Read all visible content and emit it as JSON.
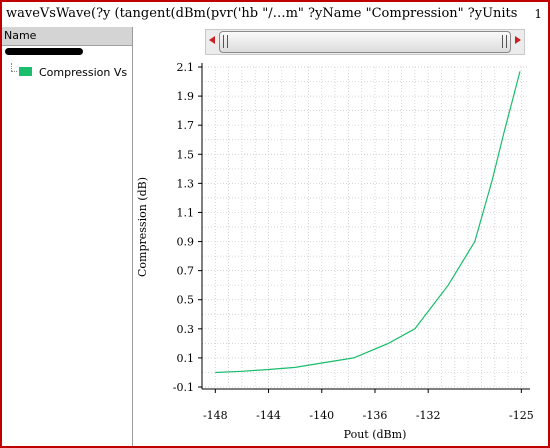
{
  "window": {
    "title": "waveVsWave(?y (tangent(dBm(pvr('hb \"/…m\" ?yName \"Compression\" ?yUnits",
    "subwindow_number": "1",
    "frame_color": "#c00000"
  },
  "sidebar": {
    "header": "Name",
    "items": [
      {
        "label": "Compression Vs",
        "color": "#19bd6b"
      }
    ]
  },
  "scrollbar": {
    "left_icon": "scroll-left-arrow-icon",
    "right_icon": "scroll-right-arrow-icon"
  },
  "chart_data": {
    "type": "line",
    "xlabel": "Pout (dBm)",
    "ylabel": "Compression (dB)",
    "xlim": [
      -149,
      -124.5
    ],
    "ylim": [
      -0.1,
      2.1
    ],
    "xticks": [
      -148,
      -144,
      -140,
      -136,
      -132,
      -125
    ],
    "xtick_labels": [
      "-148",
      "-144",
      "-140",
      "-136",
      "-132",
      "-125"
    ],
    "yticks": [
      -0.1,
      0.1,
      0.3,
      0.5,
      0.7,
      0.9,
      1.1,
      1.3,
      1.5,
      1.7,
      1.9,
      2.1
    ],
    "ytick_labels": [
      "-0.1",
      "0.1",
      "0.3",
      "0.5",
      "0.7",
      "0.9",
      "1.1",
      "1.3",
      "1.5",
      "1.7",
      "1.9",
      "2.1"
    ],
    "grid": true,
    "series": [
      {
        "name": "Compression Vs",
        "color": "#19bd6b",
        "x": [
          -148,
          -146,
          -144,
          -142,
          -140,
          -137.6,
          -135,
          -133,
          -130.5,
          -128.5,
          -127.2,
          -126.3,
          -125.1
        ],
        "y": [
          0.0,
          0.008,
          0.02,
          0.035,
          0.065,
          0.1,
          0.2,
          0.3,
          0.6,
          0.9,
          1.32,
          1.65,
          2.07
        ]
      }
    ]
  }
}
